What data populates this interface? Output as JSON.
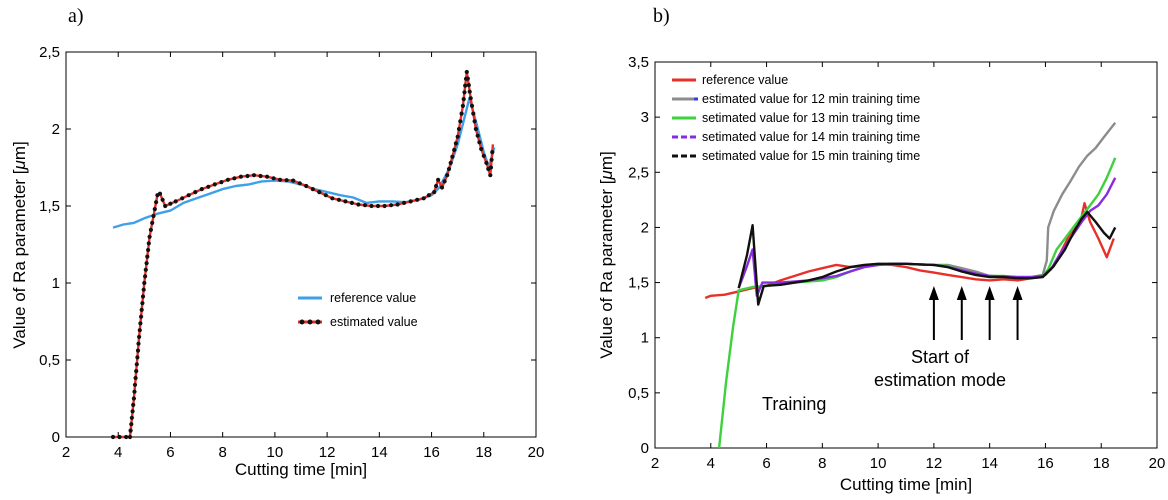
{
  "chart_data": [
    {
      "panel_label": "a)",
      "type": "line",
      "xlabel": "Cutting time [min]",
      "ylabel_prefix": "Value of Ra parameter [",
      "ylabel_mu": "μ",
      "ylabel_suffix": "m]",
      "xlim": [
        2,
        20
      ],
      "ylim": [
        0,
        2.5
      ],
      "xticks": [
        "2",
        "4",
        "6",
        "8",
        "10",
        "12",
        "14",
        "16",
        "18",
        "20"
      ],
      "yticks": [
        "0",
        "0,5",
        "1",
        "1,5",
        "2",
        "2,5"
      ],
      "legend": "center-right",
      "series": [
        {
          "name": "reference value",
          "color": "#3ea0e8",
          "marker": false,
          "points": [
            [
              3.8,
              1.36
            ],
            [
              4.2,
              1.38
            ],
            [
              4.6,
              1.39
            ],
            [
              5.0,
              1.42
            ],
            [
              5.5,
              1.45
            ],
            [
              6.0,
              1.47
            ],
            [
              6.5,
              1.52
            ],
            [
              7.0,
              1.55
            ],
            [
              7.5,
              1.58
            ],
            [
              8.0,
              1.61
            ],
            [
              8.5,
              1.63
            ],
            [
              9.0,
              1.64
            ],
            [
              9.5,
              1.66
            ],
            [
              10.0,
              1.665
            ],
            [
              10.5,
              1.66
            ],
            [
              11.0,
              1.64
            ],
            [
              11.5,
              1.61
            ],
            [
              12.0,
              1.59
            ],
            [
              12.5,
              1.57
            ],
            [
              13.0,
              1.555
            ],
            [
              13.5,
              1.52
            ],
            [
              14.0,
              1.53
            ],
            [
              14.5,
              1.53
            ],
            [
              15.0,
              1.525
            ],
            [
              15.5,
              1.54
            ],
            [
              16.0,
              1.57
            ],
            [
              16.3,
              1.62
            ],
            [
              16.7,
              1.75
            ],
            [
              17.0,
              1.9
            ],
            [
              17.3,
              2.1
            ],
            [
              17.45,
              2.2
            ],
            [
              17.7,
              2.05
            ],
            [
              18.0,
              1.85
            ],
            [
              18.2,
              1.75
            ],
            [
              18.4,
              1.88
            ]
          ]
        },
        {
          "name": "estimated value",
          "color": "#e8302a",
          "marker": true,
          "points": [
            [
              3.8,
              0
            ],
            [
              4.3,
              0
            ],
            [
              4.45,
              0
            ],
            [
              4.6,
              0.25
            ],
            [
              4.8,
              0.65
            ],
            [
              5.0,
              1.0
            ],
            [
              5.2,
              1.3
            ],
            [
              5.4,
              1.48
            ],
            [
              5.5,
              1.57
            ],
            [
              5.6,
              1.58
            ],
            [
              5.8,
              1.5
            ],
            [
              6.2,
              1.53
            ],
            [
              6.7,
              1.57
            ],
            [
              7.2,
              1.61
            ],
            [
              7.7,
              1.64
            ],
            [
              8.2,
              1.67
            ],
            [
              8.7,
              1.69
            ],
            [
              9.2,
              1.7
            ],
            [
              9.7,
              1.69
            ],
            [
              10.2,
              1.67
            ],
            [
              10.7,
              1.665
            ],
            [
              11.2,
              1.63
            ],
            [
              11.7,
              1.59
            ],
            [
              12.2,
              1.55
            ],
            [
              12.7,
              1.53
            ],
            [
              13.2,
              1.51
            ],
            [
              13.7,
              1.5
            ],
            [
              14.2,
              1.5
            ],
            [
              14.7,
              1.51
            ],
            [
              15.2,
              1.53
            ],
            [
              15.7,
              1.55
            ],
            [
              16.1,
              1.59
            ],
            [
              16.25,
              1.67
            ],
            [
              16.4,
              1.62
            ],
            [
              16.6,
              1.7
            ],
            [
              16.8,
              1.82
            ],
            [
              17.0,
              1.95
            ],
            [
              17.2,
              2.15
            ],
            [
              17.35,
              2.37
            ],
            [
              17.5,
              2.2
            ],
            [
              17.7,
              2.0
            ],
            [
              17.9,
              1.87
            ],
            [
              18.1,
              1.78
            ],
            [
              18.25,
              1.7
            ],
            [
              18.35,
              1.9
            ]
          ]
        }
      ]
    },
    {
      "panel_label": "b)",
      "type": "line",
      "xlabel": "Cutting time [min]",
      "ylabel_prefix": "Value of Ra parameter [",
      "ylabel_mu": "μ",
      "ylabel_suffix": "m]",
      "xlim": [
        2,
        20
      ],
      "ylim": [
        0,
        3.5
      ],
      "xticks": [
        "2",
        "4",
        "6",
        "8",
        "10",
        "12",
        "14",
        "16",
        "18",
        "20"
      ],
      "yticks": [
        "0",
        "0,5",
        "1",
        "1,5",
        "2",
        "2,5",
        "3",
        "3,5"
      ],
      "legend": "top-left",
      "annotations": {
        "training": "Training",
        "start_line1": "Start of",
        "start_line2": "estimation mode",
        "arrow_x": [
          12,
          13,
          14,
          15
        ]
      },
      "series": [
        {
          "name": "reference value",
          "color": "#e8302a",
          "dash": false,
          "points": [
            [
              3.8,
              1.36
            ],
            [
              4.0,
              1.38
            ],
            [
              4.5,
              1.39
            ],
            [
              5.0,
              1.42
            ],
            [
              5.5,
              1.45
            ],
            [
              6.0,
              1.47
            ],
            [
              6.5,
              1.52
            ],
            [
              7.0,
              1.56
            ],
            [
              7.5,
              1.6
            ],
            [
              8.0,
              1.63
            ],
            [
              8.5,
              1.66
            ],
            [
              9.0,
              1.64
            ],
            [
              9.5,
              1.65
            ],
            [
              10.0,
              1.665
            ],
            [
              10.5,
              1.66
            ],
            [
              11.0,
              1.64
            ],
            [
              11.5,
              1.61
            ],
            [
              12.0,
              1.59
            ],
            [
              12.5,
              1.57
            ],
            [
              13.0,
              1.55
            ],
            [
              13.5,
              1.53
            ],
            [
              14.0,
              1.52
            ],
            [
              14.5,
              1.53
            ],
            [
              15.0,
              1.52
            ],
            [
              15.5,
              1.54
            ],
            [
              16.0,
              1.57
            ],
            [
              16.3,
              1.65
            ],
            [
              16.6,
              1.8
            ],
            [
              16.9,
              1.95
            ],
            [
              17.3,
              2.1
            ],
            [
              17.4,
              2.22
            ],
            [
              17.6,
              2.05
            ],
            [
              17.9,
              1.9
            ],
            [
              18.2,
              1.73
            ],
            [
              18.45,
              1.9
            ]
          ]
        },
        {
          "name": "estimated value for 12 min training time",
          "color": "#8c8c8c",
          "dash": false,
          "points": [
            [
              12.0,
              1.66
            ],
            [
              12.5,
              1.66
            ],
            [
              13.0,
              1.63
            ],
            [
              13.5,
              1.6
            ],
            [
              14.0,
              1.56
            ],
            [
              14.5,
              1.55
            ],
            [
              15.0,
              1.55
            ],
            [
              15.5,
              1.55
            ],
            [
              15.9,
              1.57
            ],
            [
              16.05,
              1.7
            ],
            [
              16.1,
              2.0
            ],
            [
              16.3,
              2.15
            ],
            [
              16.6,
              2.3
            ],
            [
              16.9,
              2.42
            ],
            [
              17.2,
              2.55
            ],
            [
              17.5,
              2.65
            ],
            [
              17.8,
              2.72
            ],
            [
              18.1,
              2.82
            ],
            [
              18.5,
              2.95
            ]
          ]
        },
        {
          "name": "setimated value for 13 min training time",
          "color": "#3dd13d",
          "dash": false,
          "points": [
            [
              4.3,
              0
            ],
            [
              4.55,
              0.6
            ],
            [
              4.8,
              1.1
            ],
            [
              5.0,
              1.43
            ],
            [
              5.5,
              1.46
            ],
            [
              6.0,
              1.47
            ],
            [
              7.0,
              1.5
            ],
            [
              8.0,
              1.52
            ],
            [
              8.5,
              1.55
            ],
            [
              9.0,
              1.6
            ],
            [
              9.5,
              1.64
            ],
            [
              10.0,
              1.66
            ],
            [
              10.5,
              1.67
            ],
            [
              11.0,
              1.67
            ],
            [
              11.5,
              1.665
            ],
            [
              12.0,
              1.66
            ],
            [
              12.5,
              1.65
            ],
            [
              13.0,
              1.6
            ],
            [
              13.5,
              1.57
            ],
            [
              14.0,
              1.56
            ],
            [
              14.5,
              1.56
            ],
            [
              15.0,
              1.55
            ],
            [
              15.5,
              1.55
            ],
            [
              15.9,
              1.56
            ],
            [
              16.1,
              1.62
            ],
            [
              16.4,
              1.8
            ],
            [
              16.7,
              1.9
            ],
            [
              17.0,
              2.0
            ],
            [
              17.3,
              2.1
            ],
            [
              17.6,
              2.2
            ],
            [
              17.9,
              2.3
            ],
            [
              18.2,
              2.45
            ],
            [
              18.5,
              2.63
            ]
          ]
        },
        {
          "name": "setimated value for 14 min training time",
          "color": "#8a2be2",
          "dash": false,
          "points": [
            [
              5.0,
              1.45
            ],
            [
              5.3,
              1.65
            ],
            [
              5.5,
              1.8
            ],
            [
              5.65,
              1.38
            ],
            [
              5.85,
              1.5
            ],
            [
              6.5,
              1.5
            ],
            [
              7.5,
              1.52
            ],
            [
              8.5,
              1.56
            ],
            [
              9.0,
              1.6
            ],
            [
              9.5,
              1.64
            ],
            [
              10.0,
              1.66
            ],
            [
              10.5,
              1.67
            ],
            [
              11.0,
              1.67
            ],
            [
              11.5,
              1.665
            ],
            [
              12.0,
              1.66
            ],
            [
              12.5,
              1.64
            ],
            [
              13.0,
              1.61
            ],
            [
              13.5,
              1.58
            ],
            [
              14.0,
              1.56
            ],
            [
              14.5,
              1.555
            ],
            [
              15.0,
              1.55
            ],
            [
              15.5,
              1.55
            ],
            [
              15.9,
              1.56
            ],
            [
              16.2,
              1.62
            ],
            [
              16.5,
              1.75
            ],
            [
              16.9,
              1.9
            ],
            [
              17.3,
              2.05
            ],
            [
              17.6,
              2.15
            ],
            [
              17.9,
              2.2
            ],
            [
              18.2,
              2.3
            ],
            [
              18.5,
              2.45
            ]
          ]
        },
        {
          "name": "setimated value for 15 min training time",
          "color": "#111111",
          "dash": false,
          "points": [
            [
              5.0,
              1.45
            ],
            [
              5.3,
              1.75
            ],
            [
              5.5,
              2.02
            ],
            [
              5.7,
              1.3
            ],
            [
              5.9,
              1.47
            ],
            [
              6.5,
              1.48
            ],
            [
              7.5,
              1.52
            ],
            [
              8.0,
              1.55
            ],
            [
              8.5,
              1.6
            ],
            [
              9.0,
              1.64
            ],
            [
              9.5,
              1.66
            ],
            [
              10.0,
              1.67
            ],
            [
              10.5,
              1.67
            ],
            [
              11.0,
              1.67
            ],
            [
              11.5,
              1.665
            ],
            [
              12.0,
              1.66
            ],
            [
              12.5,
              1.64
            ],
            [
              13.0,
              1.6
            ],
            [
              13.5,
              1.57
            ],
            [
              14.0,
              1.55
            ],
            [
              14.5,
              1.55
            ],
            [
              15.0,
              1.54
            ],
            [
              15.5,
              1.54
            ],
            [
              15.9,
              1.55
            ],
            [
              16.3,
              1.65
            ],
            [
              16.7,
              1.8
            ],
            [
              17.0,
              1.95
            ],
            [
              17.3,
              2.08
            ],
            [
              17.5,
              2.14
            ],
            [
              17.8,
              2.05
            ],
            [
              18.1,
              1.95
            ],
            [
              18.3,
              1.9
            ],
            [
              18.5,
              2.0
            ]
          ]
        }
      ]
    }
  ]
}
